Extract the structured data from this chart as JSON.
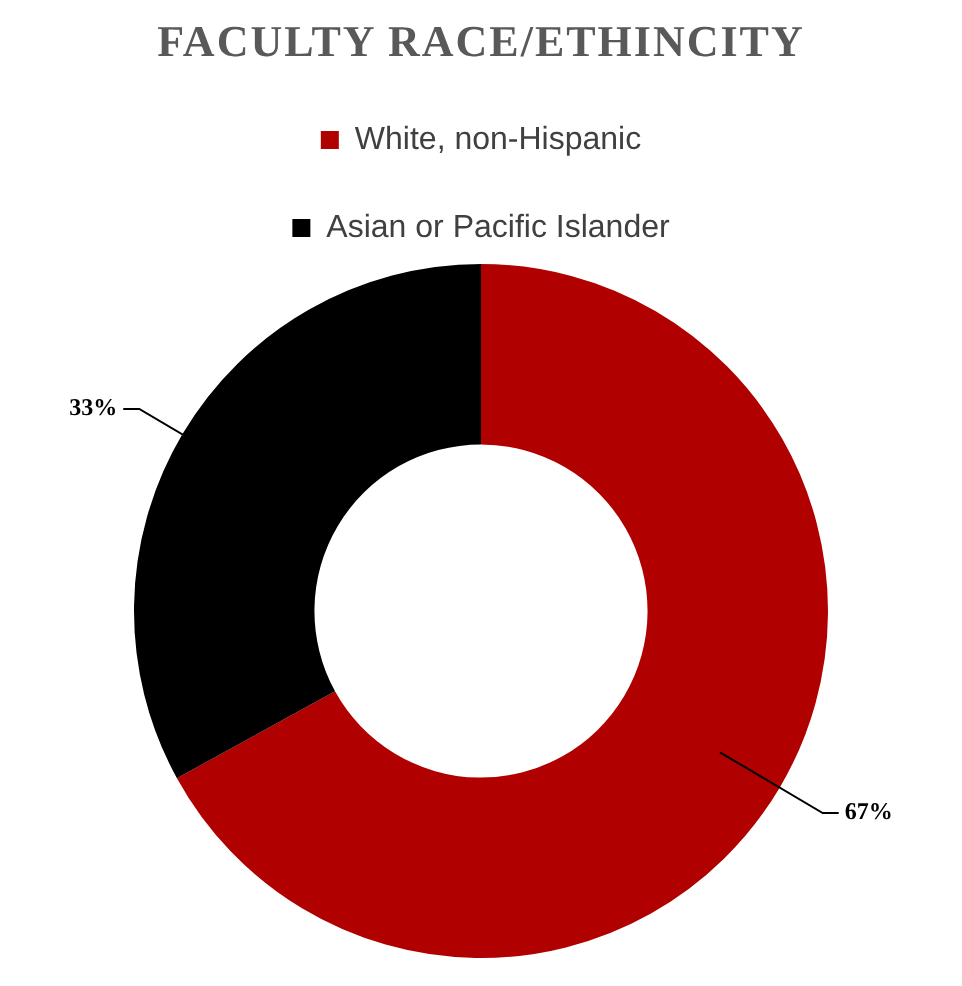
{
  "chart_data": {
    "type": "donut",
    "title": "FACULTY RACE/ETHINCITY",
    "categories": [
      "White, non-Hispanic",
      "Asian or Pacific Islander"
    ],
    "values": [
      67,
      33
    ],
    "colors": [
      "#b00000",
      "#000000"
    ],
    "value_labels": [
      "67%",
      "33%"
    ],
    "legend": "top"
  }
}
